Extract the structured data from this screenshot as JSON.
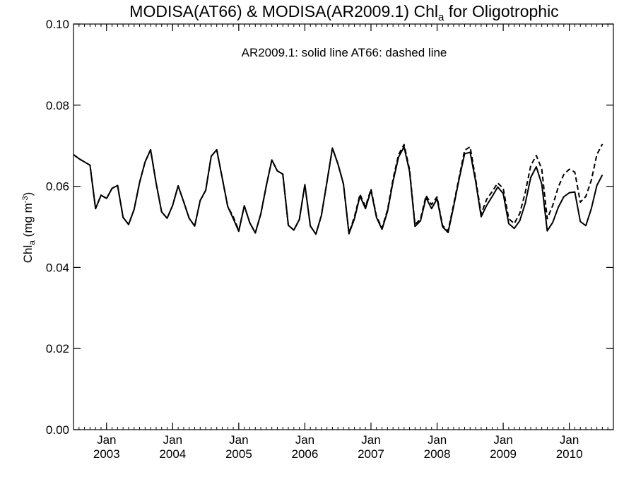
{
  "chart_data": {
    "type": "line",
    "title": {
      "main": "MODISA(AT66) & MODISA(AR2009.1)  Chl",
      "sub": "a",
      "rest": " for Oligotrophic"
    },
    "annotation": "AR2009.1: solid line   AT66: dashed line",
    "ylabel": {
      "main": "Chl",
      "sub": "a",
      "unit_open": " (mg m",
      "sup": "-3",
      "unit_close": ")"
    },
    "ylim": [
      0.0,
      0.1
    ],
    "yticks": [
      "0.00",
      "0.02",
      "0.04",
      "0.06",
      "0.08",
      "0.10"
    ],
    "xlim": [
      "2002-07",
      "2010-09"
    ],
    "xticks": [
      {
        "month": "Jan",
        "year": "2003",
        "date": "2003-01"
      },
      {
        "month": "Jan",
        "year": "2004",
        "date": "2004-01"
      },
      {
        "month": "Jan",
        "year": "2005",
        "date": "2005-01"
      },
      {
        "month": "Jan",
        "year": "2006",
        "date": "2006-01"
      },
      {
        "month": "Jan",
        "year": "2007",
        "date": "2007-01"
      },
      {
        "month": "Jan",
        "year": "2008",
        "date": "2008-01"
      },
      {
        "month": "Jan",
        "year": "2009",
        "date": "2009-01"
      },
      {
        "month": "Jan",
        "year": "2010",
        "date": "2010-01"
      }
    ],
    "x_start": "2002-07",
    "series": [
      {
        "name": "AR2009.1",
        "style": "solid",
        "color": "#000000",
        "values": [
          0.0678,
          0.0668,
          0.066,
          0.0652,
          0.0545,
          0.0578,
          0.057,
          0.0595,
          0.0602,
          0.0523,
          0.0506,
          0.0543,
          0.061,
          0.066,
          0.069,
          0.0608,
          0.0537,
          0.0521,
          0.0553,
          0.0601,
          0.0562,
          0.0521,
          0.0502,
          0.0565,
          0.059,
          0.0674,
          0.069,
          0.062,
          0.055,
          0.052,
          0.0489,
          0.0552,
          0.051,
          0.0485,
          0.0532,
          0.0602,
          0.0665,
          0.0638,
          0.063,
          0.0504,
          0.0492,
          0.0518,
          0.0604,
          0.0502,
          0.0482,
          0.0528,
          0.061,
          0.0694,
          0.0655,
          0.0606,
          0.0483,
          0.052,
          0.0576,
          0.0545,
          0.059,
          0.0523,
          0.0494,
          0.0538,
          0.0612,
          0.0672,
          0.0697,
          0.0636,
          0.0501,
          0.0515,
          0.0572,
          0.0545,
          0.0569,
          0.05,
          0.0486,
          0.055,
          0.0618,
          0.068,
          0.0684,
          0.0612,
          0.0525,
          0.0553,
          0.0575,
          0.0598,
          0.0582,
          0.0508,
          0.0496,
          0.0515,
          0.0558,
          0.0622,
          0.0648,
          0.0605,
          0.049,
          0.0511,
          0.0548,
          0.0574,
          0.0584,
          0.0586,
          0.0513,
          0.0503,
          0.0545,
          0.0602,
          0.0628
        ]
      },
      {
        "name": "AT66",
        "style": "dashed",
        "color": "#000000",
        "values": [
          0.0678,
          0.0668,
          0.066,
          0.0652,
          0.0545,
          0.0578,
          0.057,
          0.0595,
          0.0602,
          0.0523,
          0.0506,
          0.0543,
          0.061,
          0.066,
          0.069,
          0.0608,
          0.0537,
          0.0521,
          0.0553,
          0.0601,
          0.0562,
          0.0521,
          0.0502,
          0.0565,
          0.059,
          0.0674,
          0.069,
          0.062,
          0.055,
          0.0525,
          0.0491,
          0.0552,
          0.051,
          0.0485,
          0.0532,
          0.0602,
          0.0665,
          0.0638,
          0.063,
          0.0504,
          0.0492,
          0.0518,
          0.0604,
          0.0502,
          0.0482,
          0.0528,
          0.061,
          0.0694,
          0.0655,
          0.0606,
          0.0485,
          0.0525,
          0.058,
          0.055,
          0.0593,
          0.0526,
          0.0497,
          0.0542,
          0.0618,
          0.0678,
          0.0703,
          0.0641,
          0.0505,
          0.052,
          0.0577,
          0.0555,
          0.0574,
          0.0503,
          0.049,
          0.0555,
          0.0622,
          0.0689,
          0.0697,
          0.0618,
          0.0532,
          0.0568,
          0.0587,
          0.0608,
          0.0595,
          0.052,
          0.0508,
          0.0533,
          0.0585,
          0.0651,
          0.0676,
          0.0642,
          0.052,
          0.0553,
          0.0598,
          0.0629,
          0.0642,
          0.0635,
          0.0561,
          0.0575,
          0.0615,
          0.0678,
          0.0704
        ]
      }
    ],
    "grid": false,
    "legend": "annotation-top-center"
  }
}
